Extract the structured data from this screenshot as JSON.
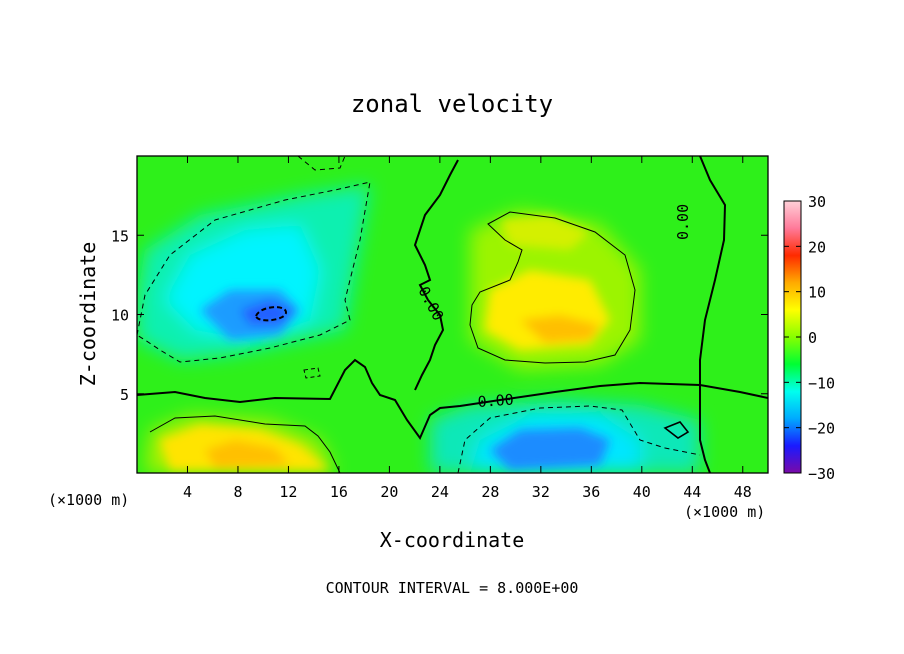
{
  "chart_data": {
    "type": "heatmap",
    "title": "zonal velocity",
    "xlabel": "X-coordinate",
    "ylabel": "Z-coordinate",
    "x_unit_left": "(×1000 m)",
    "x_unit_right": "(×1000 m)",
    "x_range": [
      0,
      50
    ],
    "y_range": [
      0,
      20
    ],
    "x_ticks": [
      4,
      8,
      12,
      16,
      20,
      24,
      28,
      32,
      36,
      40,
      44,
      48
    ],
    "y_ticks": [
      5,
      10,
      15
    ],
    "colorbar": {
      "range": [
        -30,
        30
      ],
      "ticks": [
        30,
        20,
        10,
        0,
        -10,
        -20,
        -30
      ],
      "colors": [
        "#7a0aa8",
        "#1a1aff",
        "#00aaff",
        "#00ffee",
        "#00ff33",
        "#88ff00",
        "#ffff00",
        "#ffaa00",
        "#ff2a00",
        "#ff7a9a",
        "#ffd0d8"
      ]
    },
    "contour_labels": [
      "0.00",
      "0.00",
      "0.00"
    ],
    "contour_interval_label": "CONTOUR INTERVAL = 8.000E+00",
    "features": [
      {
        "name": "negative core upper-left",
        "x": 11,
        "z": 10,
        "value": -17
      },
      {
        "name": "negative upper-left region",
        "x": 7,
        "z": 13,
        "value": -10
      },
      {
        "name": "positive upper-right region",
        "x": 33,
        "z": 9,
        "value": 12
      },
      {
        "name": "positive lower-left region",
        "x": 9,
        "z": 2,
        "value": 12
      },
      {
        "name": "negative lower-right region",
        "x": 32,
        "z": 1.5,
        "value": -14
      }
    ]
  }
}
